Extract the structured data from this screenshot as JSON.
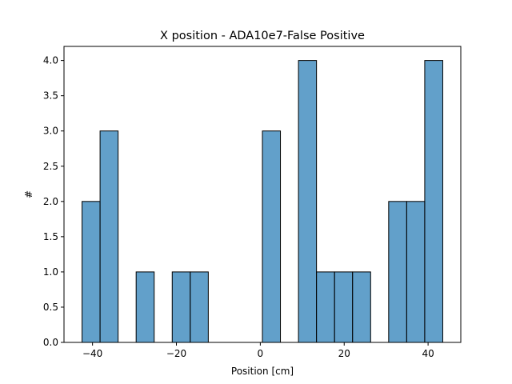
{
  "chart_data": {
    "type": "bar",
    "title": "X position - ADA10e7-False Positive",
    "xlabel": "Position [cm]",
    "ylabel": "#",
    "xlim": [
      -46.8,
      47.8
    ],
    "ylim": [
      0,
      4.2
    ],
    "xticks": [
      -40,
      -20,
      0,
      20,
      40
    ],
    "xtick_labels": [
      "−40",
      "−20",
      "0",
      "20",
      "40"
    ],
    "yticks": [
      0,
      0.5,
      1,
      1.5,
      2,
      2.5,
      3,
      3.5,
      4
    ],
    "ytick_labels": [
      "0.0",
      "0.5",
      "1.0",
      "1.5",
      "2.0",
      "2.5",
      "3.0",
      "3.5",
      "4.0"
    ],
    "bin_edges": [
      -42.5,
      -38.2,
      -33.9,
      -29.6,
      -25.3,
      -21.0,
      -16.7,
      -12.4,
      -8.1,
      -3.8,
      0.5,
      4.8,
      9.1,
      13.4,
      17.7,
      22.0,
      26.3,
      30.6,
      34.9,
      39.2,
      43.5
    ],
    "counts": [
      2,
      3,
      0,
      1,
      0,
      1,
      1,
      0,
      0,
      0,
      3,
      0,
      4,
      1,
      1,
      1,
      0,
      2,
      2,
      4
    ],
    "bar_color": "#1f77b4",
    "bar_alpha": 0.7,
    "edge_color": "#000000",
    "grid": false
  }
}
